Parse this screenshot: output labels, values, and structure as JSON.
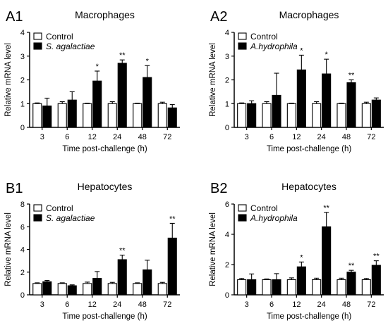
{
  "figure": {
    "panels": [
      "A1",
      "A2",
      "B1",
      "B2"
    ]
  },
  "chart_data": [
    {
      "panel_label": "A1",
      "type": "bar",
      "title": "Macrophages",
      "xlabel": "Time post-challenge (h)",
      "ylabel": "Relative mRNA level",
      "categories": [
        "3",
        "6",
        "12",
        "24",
        "48",
        "72"
      ],
      "ylim": [
        0,
        4
      ],
      "yticks": [
        "0",
        "1",
        "2",
        "3",
        "4"
      ],
      "grid": false,
      "legend_position": "top-left",
      "series": [
        {
          "name": "Control",
          "color": "#ffffff",
          "values": [
            1.0,
            1.0,
            1.0,
            1.0,
            1.0,
            1.0
          ],
          "errors": [
            0.03,
            0.08,
            0.02,
            0.08,
            0.02,
            0.06
          ]
        },
        {
          "name": "S. agalactiae",
          "italic": true,
          "color": "#000000",
          "values": [
            0.9,
            1.15,
            1.95,
            2.7,
            2.1,
            0.82
          ],
          "errors": [
            0.33,
            0.35,
            0.42,
            0.14,
            0.5,
            0.14
          ]
        }
      ],
      "significance": [
        "",
        "",
        "*",
        "**",
        "*",
        ""
      ]
    },
    {
      "panel_label": "A2",
      "type": "bar",
      "title": "Macrophages",
      "xlabel": "Time post-challenge (h)",
      "ylabel": "Relative mRNA level",
      "categories": [
        "3",
        "6",
        "12",
        "24",
        "48",
        "72"
      ],
      "ylim": [
        0,
        4
      ],
      "yticks": [
        "0",
        "1",
        "2",
        "3",
        "4"
      ],
      "grid": false,
      "legend_position": "top-left",
      "series": [
        {
          "name": "Control",
          "color": "#ffffff",
          "values": [
            1.0,
            1.0,
            1.0,
            1.0,
            1.0,
            1.0
          ],
          "errors": [
            0.03,
            0.08,
            0.02,
            0.08,
            0.02,
            0.06
          ]
        },
        {
          "name": "A.hydrophila",
          "italic": true,
          "color": "#000000",
          "values": [
            1.0,
            1.35,
            2.42,
            2.25,
            1.88,
            1.15
          ],
          "errors": [
            0.12,
            0.93,
            0.62,
            0.62,
            0.12,
            0.09
          ]
        }
      ],
      "significance": [
        "",
        "",
        "*",
        "*",
        "**",
        ""
      ]
    },
    {
      "panel_label": "B1",
      "type": "bar",
      "title": "Hepatocytes",
      "xlabel": "Time post-challenge (h)",
      "ylabel": "Relative mRNA level",
      "categories": [
        "3",
        "6",
        "12",
        "24",
        "48",
        "72"
      ],
      "ylim": [
        0,
        8
      ],
      "yticks": [
        "0",
        "2",
        "4",
        "6",
        "8"
      ],
      "grid": false,
      "legend_position": "top-left",
      "series": [
        {
          "name": "Control",
          "color": "#ffffff",
          "values": [
            1.0,
            1.0,
            1.0,
            1.0,
            1.0,
            1.0
          ],
          "errors": [
            0.06,
            0.06,
            0.12,
            0.1,
            0.06,
            0.1
          ]
        },
        {
          "name": "S. agalactiae",
          "italic": true,
          "color": "#000000",
          "values": [
            1.15,
            0.8,
            1.45,
            3.1,
            2.2,
            5.0
          ],
          "errors": [
            0.12,
            0.08,
            0.6,
            0.4,
            0.85,
            1.3
          ]
        }
      ],
      "significance": [
        "",
        "",
        "",
        "**",
        "",
        "**"
      ]
    },
    {
      "panel_label": "B2",
      "type": "bar",
      "title": "Hepatocytes",
      "xlabel": "Time post-challenge (h)",
      "ylabel": "Relative mRNA level",
      "categories": [
        "3",
        "6",
        "12",
        "24",
        "48",
        "72"
      ],
      "ylim": [
        0,
        6
      ],
      "yticks": [
        "0",
        "2",
        "4",
        "6"
      ],
      "grid": false,
      "legend_position": "top-left",
      "series": [
        {
          "name": "Control",
          "color": "#ffffff",
          "values": [
            1.0,
            1.0,
            1.0,
            1.0,
            1.0,
            1.0
          ],
          "errors": [
            0.08,
            0.05,
            0.12,
            0.1,
            0.1,
            0.08
          ]
        },
        {
          "name": "A.hydrophila",
          "italic": true,
          "color": "#000000",
          "values": [
            1.0,
            1.0,
            1.85,
            4.5,
            1.5,
            1.95
          ],
          "errors": [
            0.38,
            0.4,
            0.32,
            0.95,
            0.12,
            0.3
          ]
        }
      ],
      "significance": [
        "",
        "",
        "*",
        "**",
        "**",
        "**"
      ]
    }
  ]
}
